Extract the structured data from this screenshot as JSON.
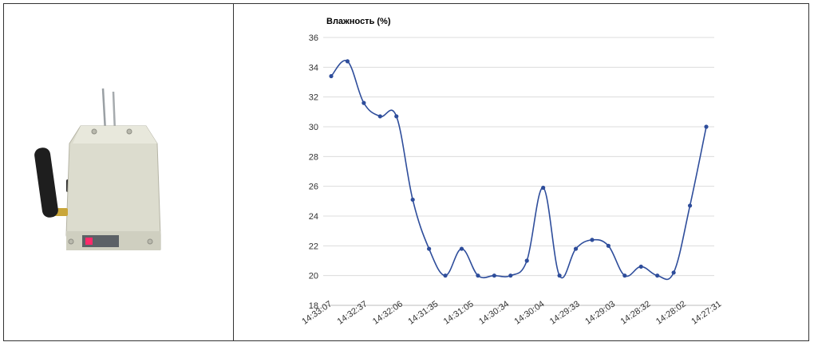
{
  "chart_data": {
    "type": "line",
    "title": "Влажность (%)",
    "xlabel": "",
    "ylabel": "",
    "ylim": [
      18,
      36
    ],
    "yticks": [
      18,
      20,
      22,
      24,
      26,
      28,
      30,
      32,
      34,
      36
    ],
    "grid": true,
    "smooth": true,
    "line_color": "#2e4d9b",
    "grid_color": "#dcdcdc",
    "x_tick_labels": [
      "14:33:07",
      "14:32:37",
      "14:32:06",
      "14:31:35",
      "14:31:05",
      "14:30:34",
      "14:30:04",
      "14:29:33",
      "14:29:03",
      "14:28:32",
      "14:28:02",
      "14:27:31"
    ],
    "series": [
      {
        "values": [
          33.4,
          34.4,
          31.6,
          30.7,
          30.7,
          25.1,
          21.8,
          20.0,
          21.8,
          20.0,
          20.0,
          20.0,
          21.0,
          25.9,
          20.0,
          21.8,
          22.4,
          22.0,
          20.0,
          20.6,
          20.0,
          20.2,
          24.7,
          30.0
        ]
      }
    ]
  }
}
